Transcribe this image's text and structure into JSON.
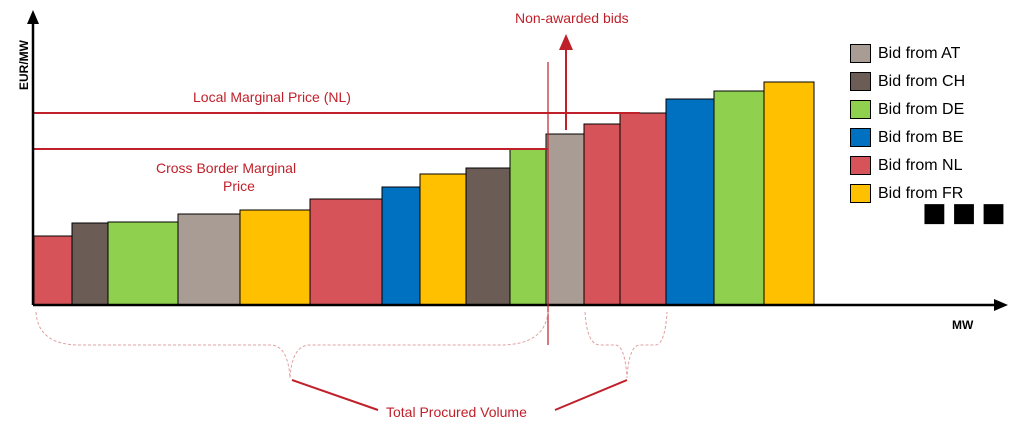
{
  "chart_data": {
    "type": "bar",
    "xlabel": "MW",
    "ylabel": "EUR/MW",
    "bars": [
      {
        "country": "NL",
        "value": 69
      },
      {
        "country": "CH",
        "value": 82
      },
      {
        "country": "DE",
        "value": 83
      },
      {
        "country": "AT",
        "value": 91
      },
      {
        "country": "FR",
        "value": 95
      },
      {
        "country": "NL",
        "value": 106
      },
      {
        "country": "BE",
        "value": 118
      },
      {
        "country": "FR",
        "value": 131
      },
      {
        "country": "CH",
        "value": 137
      },
      {
        "country": "DE",
        "value": 156
      },
      {
        "country": "AT",
        "value": 171
      },
      {
        "country": "NL",
        "value": 181
      },
      {
        "country": "NL",
        "value": 192
      },
      {
        "country": "BE",
        "value": 206
      },
      {
        "country": "DE",
        "value": 214
      },
      {
        "country": "FR",
        "value": 223
      }
    ],
    "lines": [
      {
        "label": "Local Marginal Price (NL)",
        "value": 192
      },
      {
        "label": "Cross Border Marginal Price",
        "value": 156
      }
    ],
    "annotations": {
      "non_awarded": "Non-awarded bids",
      "total_volume": "Total Procured Volume",
      "cross_border_line1": "Cross Border Marginal",
      "cross_border_line2": "Price",
      "more": "■■■"
    },
    "legend": [
      {
        "label": "Bid from AT",
        "country": "AT"
      },
      {
        "label": "Bid from CH",
        "country": "CH"
      },
      {
        "label": "Bid from DE",
        "country": "DE"
      },
      {
        "label": "Bid from BE",
        "country": "BE"
      },
      {
        "label": "Bid from NL",
        "country": "NL"
      },
      {
        "label": "Bid from FR",
        "country": "FR"
      }
    ],
    "colors": {
      "AT": "#a89c94",
      "CH": "#6b5d55",
      "DE": "#8fd14f",
      "BE": "#0070c0",
      "NL": "#d65359",
      "FR": "#ffc000",
      "annotation": "#c0202a"
    }
  }
}
